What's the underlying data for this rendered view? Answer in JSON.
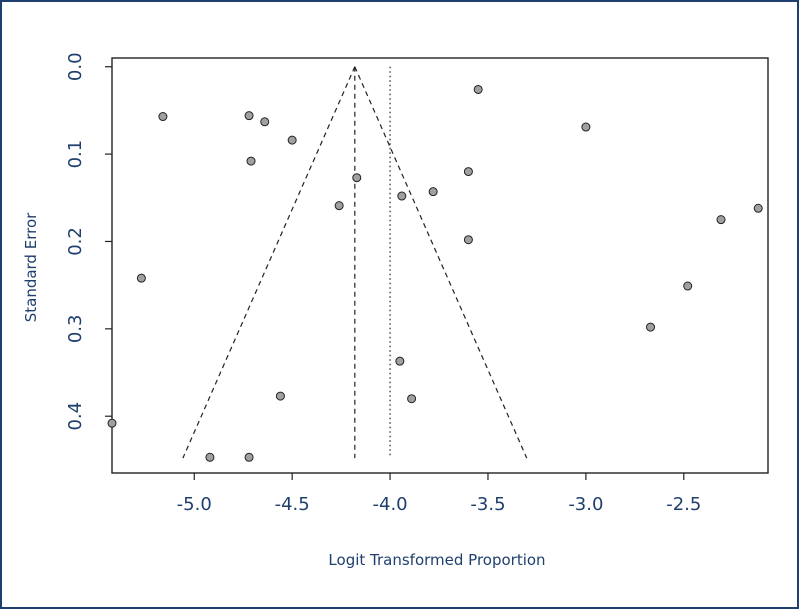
{
  "chart_data": {
    "type": "scatter",
    "title": "",
    "xlabel": "Logit Transformed Proportion",
    "ylabel": "Standard Error",
    "xlim": [
      -5.42,
      -2.07
    ],
    "ylim": [
      0.465,
      -0.01
    ],
    "y_inverted": true,
    "grid": false,
    "x_ticks": [
      -5.0,
      -4.5,
      -4.0,
      -3.5,
      -3.0,
      -2.5
    ],
    "x_tick_labels": [
      "-5.0",
      "-4.5",
      "-4.0",
      "-3.5",
      "-3.0",
      "-2.5"
    ],
    "y_ticks": [
      0.0,
      0.1,
      0.2,
      0.3,
      0.4
    ],
    "y_tick_labels": [
      "0.0",
      "0.1",
      "0.2",
      "0.3",
      "0.4"
    ],
    "point_color": "#a0a0a0",
    "point_edge_color": "#222222",
    "funnel": {
      "center": -4.18,
      "se_max": 0.448,
      "z": 1.96,
      "line_style": "dashed"
    },
    "reference_line": {
      "x": -4.0,
      "line_style": "dotted"
    },
    "points": [
      {
        "x": -5.42,
        "y": 0.408
      },
      {
        "x": -5.27,
        "y": 0.242
      },
      {
        "x": -5.16,
        "y": 0.057
      },
      {
        "x": -4.92,
        "y": 0.447
      },
      {
        "x": -4.72,
        "y": 0.447
      },
      {
        "x": -4.72,
        "y": 0.056
      },
      {
        "x": -4.71,
        "y": 0.108
      },
      {
        "x": -4.64,
        "y": 0.063
      },
      {
        "x": -4.56,
        "y": 0.377
      },
      {
        "x": -4.5,
        "y": 0.084
      },
      {
        "x": -4.26,
        "y": 0.159
      },
      {
        "x": -4.17,
        "y": 0.127
      },
      {
        "x": -3.95,
        "y": 0.337
      },
      {
        "x": -3.94,
        "y": 0.148
      },
      {
        "x": -3.89,
        "y": 0.38
      },
      {
        "x": -3.78,
        "y": 0.143
      },
      {
        "x": -3.6,
        "y": 0.12
      },
      {
        "x": -3.6,
        "y": 0.198
      },
      {
        "x": -3.55,
        "y": 0.026
      },
      {
        "x": -3.0,
        "y": 0.069
      },
      {
        "x": -2.67,
        "y": 0.298
      },
      {
        "x": -2.48,
        "y": 0.251
      },
      {
        "x": -2.31,
        "y": 0.175
      },
      {
        "x": -2.12,
        "y": 0.162
      }
    ]
  }
}
